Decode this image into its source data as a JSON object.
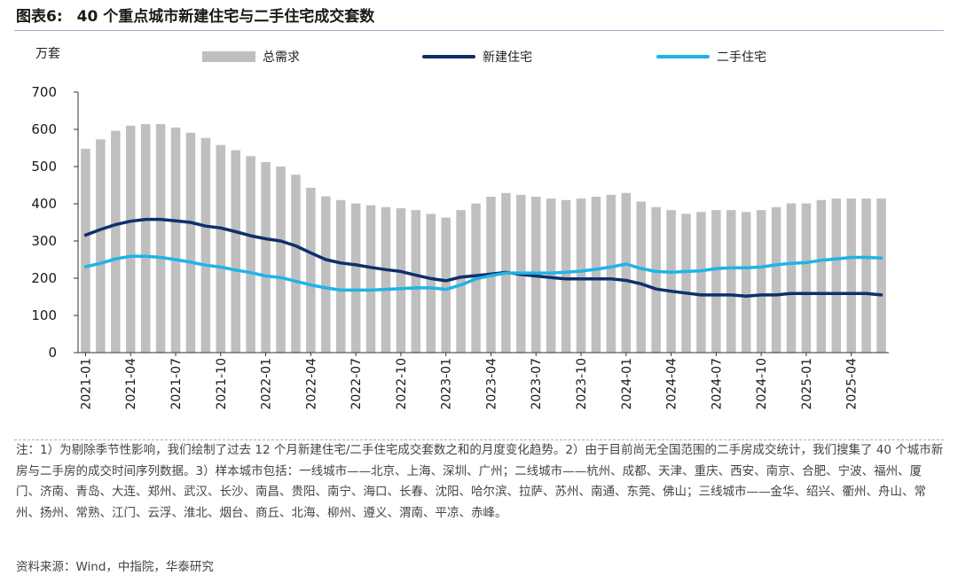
{
  "figure": {
    "label": "图表6:",
    "title": "40 个重点城市新建住宅与二手住宅成交套数",
    "notes": "注：1）为剔除季节性影响，我们绘制了过去 12 个月新建住宅/二手住宅成交套数之和的月度变化趋势。2）由于目前尚无全国范围的二手房成交统计，我们搜集了 40 个城市新房与二手房的成交时间序列数据。3）样本城市包括：一线城市——北京、上海、深圳、广州；二线城市——杭州、成都、天津、重庆、西安、南京、合肥、宁波、福州、厦门、济南、青岛、大连、郑州、武汉、长沙、南昌、贵阳、南宁、海口、长春、沈阳、哈尔滨、拉萨、苏州、南通、东莞、佛山；三线城市——金华、绍兴、衢州、舟山、常州、扬州、常熟、江门、云浮、淮北、烟台、商丘、北海、柳州、遵义、渭南、平凉、赤峰。",
    "source": "资料来源：Wind，中指院，华泰研究"
  },
  "chart_data": {
    "type": "bar",
    "unit_label": "万套",
    "ylim": [
      0,
      700
    ],
    "yticks": [
      0,
      100,
      200,
      300,
      400,
      500,
      600,
      700
    ],
    "grid": false,
    "legend_position": "top",
    "x_tick_labels": [
      "2021-01",
      "2021-04",
      "2021-07",
      "2021-10",
      "2022-01",
      "2022-04",
      "2022-07",
      "2022-10",
      "2023-01",
      "2023-04",
      "2023-07",
      "2023-10",
      "2024-01",
      "2024-04",
      "2024-07",
      "2024-10",
      "2025-01",
      "2025-04"
    ],
    "x_tick_every": 3,
    "categories": [
      "2021-01",
      "2021-02",
      "2021-03",
      "2021-04",
      "2021-05",
      "2021-06",
      "2021-07",
      "2021-08",
      "2021-09",
      "2021-10",
      "2021-11",
      "2021-12",
      "2022-01",
      "2022-02",
      "2022-03",
      "2022-04",
      "2022-05",
      "2022-06",
      "2022-07",
      "2022-08",
      "2022-09",
      "2022-10",
      "2022-11",
      "2022-12",
      "2023-01",
      "2023-02",
      "2023-03",
      "2023-04",
      "2023-05",
      "2023-06",
      "2023-07",
      "2023-08",
      "2023-09",
      "2023-10",
      "2023-11",
      "2023-12",
      "2024-01",
      "2024-02",
      "2024-03",
      "2024-04",
      "2024-05",
      "2024-06",
      "2024-07",
      "2024-08",
      "2024-09",
      "2024-10",
      "2024-11",
      "2024-12",
      "2025-01",
      "2025-02",
      "2025-03",
      "2025-04",
      "2025-05",
      "2025-06"
    ],
    "series": [
      {
        "name": "总需求",
        "kind": "bar",
        "color": "#bfbfbf",
        "values": [
          548,
          573,
          596,
          610,
          614,
          614,
          605,
          591,
          577,
          558,
          544,
          528,
          512,
          500,
          478,
          443,
          420,
          410,
          401,
          396,
          391,
          388,
          383,
          373,
          363,
          383,
          401,
          419,
          429,
          424,
          419,
          414,
          410,
          414,
          419,
          424,
          429,
          406,
          391,
          383,
          373,
          378,
          383,
          383,
          378,
          383,
          391,
          401,
          401,
          410,
          414,
          414,
          414,
          414
        ]
      },
      {
        "name": "新建住宅",
        "kind": "line",
        "color": "#0f2f6b",
        "values": [
          316,
          331,
          344,
          353,
          358,
          358,
          354,
          350,
          340,
          335,
          325,
          314,
          306,
          300,
          287,
          268,
          250,
          241,
          236,
          229,
          223,
          218,
          208,
          199,
          193,
          203,
          207,
          211,
          216,
          210,
          206,
          202,
          198,
          198,
          198,
          198,
          194,
          185,
          171,
          165,
          160,
          155,
          155,
          155,
          152,
          155,
          155,
          159,
          159,
          159,
          159,
          159,
          159,
          155
        ]
      },
      {
        "name": "二手住宅",
        "kind": "line",
        "color": "#1fb3e8",
        "values": [
          231,
          240,
          252,
          259,
          259,
          256,
          250,
          243,
          235,
          230,
          222,
          215,
          206,
          202,
          192,
          182,
          174,
          168,
          168,
          168,
          170,
          172,
          174,
          174,
          170,
          182,
          198,
          207,
          214,
          214,
          214,
          214,
          216,
          219,
          224,
          230,
          238,
          226,
          218,
          216,
          218,
          220,
          226,
          228,
          228,
          230,
          236,
          240,
          242,
          248,
          252,
          256,
          256,
          254
        ]
      }
    ]
  }
}
